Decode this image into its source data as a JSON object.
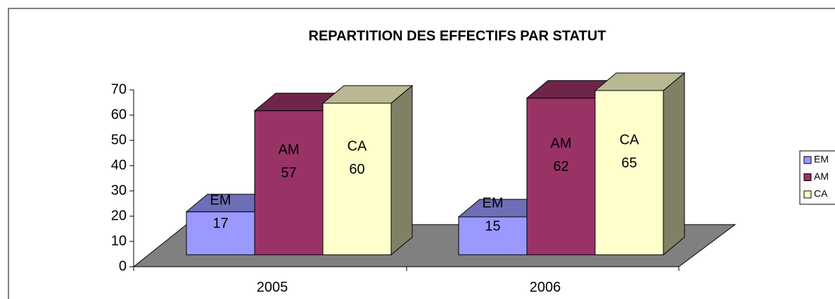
{
  "chart_data": {
    "type": "bar3d",
    "title": "REPARTITION DES EFFECTIFS PAR STATUT",
    "categories": [
      "2005",
      "2006"
    ],
    "series": [
      {
        "name": "EM",
        "color": "#9999ff",
        "values": [
          17,
          15
        ]
      },
      {
        "name": "AM",
        "color": "#993366",
        "values": [
          57,
          62
        ]
      },
      {
        "name": "CA",
        "color": "#ffffcc",
        "values": [
          60,
          65
        ]
      }
    ],
    "ylim": [
      0,
      70
    ],
    "yticks": [
      0,
      10,
      20,
      30,
      40,
      50,
      60,
      70
    ],
    "legend": "right",
    "data_labels": true
  }
}
